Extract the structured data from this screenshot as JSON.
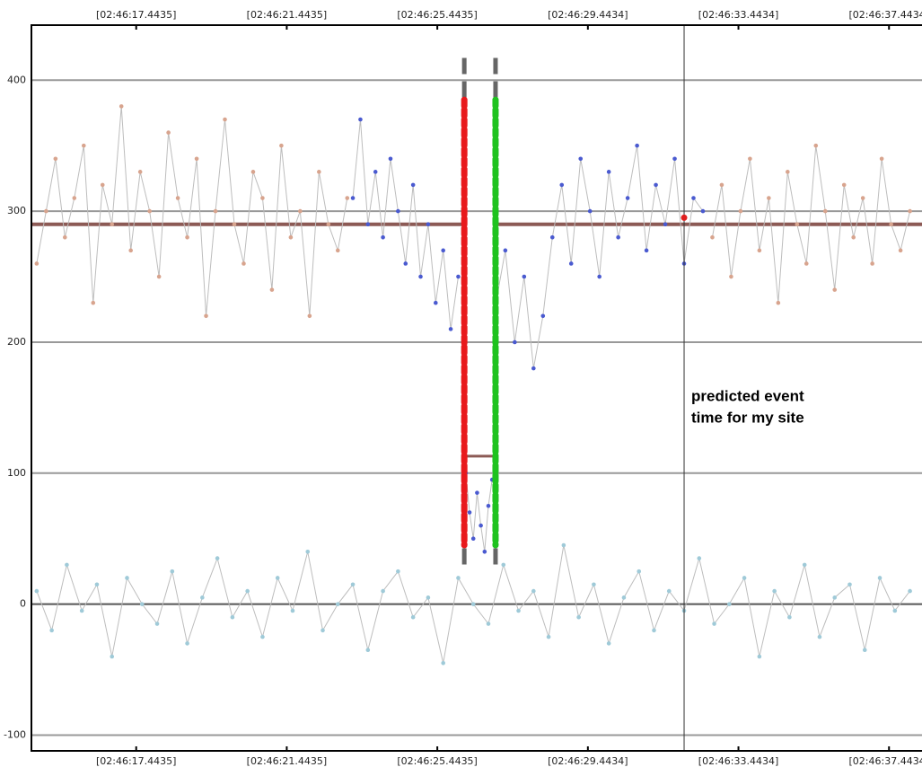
{
  "chart_data": {
    "type": "scatter",
    "xlim": [
      14.66,
      38.32
    ],
    "ylim": [
      -112,
      442
    ],
    "xticks": [
      {
        "value": 17.4435,
        "label": "[02:46:17.4435]"
      },
      {
        "value": 21.4435,
        "label": "[02:46:21.4435]"
      },
      {
        "value": 25.4435,
        "label": "[02:46:25.4435]"
      },
      {
        "value": 29.4434,
        "label": "[02:46:29.4434]"
      },
      {
        "value": 33.4434,
        "label": "[02:46:33.4434]"
      },
      {
        "value": 37.4434,
        "label": "[02:46:37.4434]"
      }
    ],
    "yticks": [
      -100,
      0,
      100,
      200,
      300,
      400
    ],
    "grid": true,
    "series": [
      {
        "color": "#d8a48e",
        "x": [
          14.8,
          15.05,
          15.3,
          15.55,
          15.8,
          16.05,
          16.3,
          16.55,
          16.8,
          17.05,
          17.3,
          17.55,
          17.8,
          18.05,
          18.3,
          18.55,
          18.8,
          19.05,
          19.3,
          19.55,
          19.8,
          20.05,
          20.3,
          20.55,
          20.8,
          21.05,
          21.3,
          21.55,
          21.8,
          22.05,
          22.3,
          22.55,
          22.8,
          23.05
        ],
        "values": [
          260,
          300,
          340,
          280,
          310,
          350,
          230,
          320,
          290,
          380,
          270,
          330,
          300,
          250,
          360,
          310,
          280,
          340,
          220,
          300,
          370,
          290,
          260,
          330,
          310,
          240,
          350,
          280,
          300,
          220,
          330,
          290,
          270,
          310
        ]
      },
      {
        "color": "#4a5ad0",
        "x": [
          23.2,
          23.4,
          23.6,
          23.8,
          24.0,
          24.2,
          24.4,
          24.6,
          24.8,
          25.0,
          25.2,
          25.4,
          25.6,
          25.8,
          26.0
        ],
        "values": [
          310,
          370,
          290,
          330,
          280,
          340,
          300,
          260,
          320,
          250,
          290,
          230,
          270,
          210,
          250
        ]
      },
      {
        "color": "#4a5ad0",
        "x": [
          26.2,
          26.3,
          26.4,
          26.5,
          26.6,
          26.7,
          26.8,
          26.9
        ],
        "values": [
          100,
          70,
          50,
          85,
          60,
          40,
          75,
          95
        ]
      },
      {
        "color": "#4a5ad0",
        "x": [
          27.0,
          27.25,
          27.5,
          27.75,
          28.0,
          28.25,
          28.5,
          28.75,
          29.0,
          29.25,
          29.5,
          29.75,
          30.0,
          30.25,
          30.5,
          30.75,
          31.0,
          31.25,
          31.5,
          31.75,
          32.0,
          32.25,
          32.5
        ],
        "values": [
          230,
          270,
          200,
          250,
          180,
          220,
          280,
          320,
          260,
          340,
          300,
          250,
          330,
          280,
          310,
          350,
          270,
          320,
          290,
          340,
          260,
          310,
          300
        ]
      },
      {
        "color": "#d8a48e",
        "x": [
          32.75,
          33.0,
          33.25,
          33.5,
          33.75,
          34.0,
          34.25,
          34.5,
          34.75,
          35.0,
          35.25,
          35.5,
          35.75,
          36.0,
          36.25,
          36.5,
          36.75,
          37.0,
          37.25,
          37.5,
          37.75,
          38.0
        ],
        "values": [
          280,
          320,
          250,
          300,
          340,
          270,
          310,
          230,
          330,
          290,
          260,
          350,
          300,
          240,
          320,
          280,
          310,
          260,
          340,
          290,
          270,
          300
        ]
      },
      {
        "color": "#9fcad8",
        "x": [
          14.8,
          15.2,
          15.6,
          16.0,
          16.4,
          16.8,
          17.2,
          17.6,
          18.0,
          18.4,
          18.8,
          19.2,
          19.6,
          20.0,
          20.4,
          20.8,
          21.2,
          21.6,
          22.0,
          22.4,
          22.8,
          23.2,
          23.6,
          24.0,
          24.4,
          24.8,
          25.2,
          25.6,
          26.0,
          26.4,
          26.8,
          27.2,
          27.6,
          28.0,
          28.4,
          28.8,
          29.2,
          29.6,
          30.0,
          30.4,
          30.8,
          31.2,
          31.6,
          32.0,
          32.4,
          32.8,
          33.2,
          33.6,
          34.0,
          34.4,
          34.8,
          35.2,
          35.6,
          36.0,
          36.4,
          36.8,
          37.2,
          37.6,
          38.0
        ],
        "values": [
          10,
          -20,
          30,
          -5,
          15,
          -40,
          20,
          0,
          -15,
          25,
          -30,
          5,
          35,
          -10,
          10,
          -25,
          20,
          -5,
          40,
          -20,
          0,
          15,
          -35,
          10,
          25,
          -10,
          5,
          -45,
          20,
          0,
          -15,
          30,
          -5,
          10,
          -25,
          45,
          -10,
          15,
          -30,
          5,
          25,
          -20,
          10,
          -5,
          35,
          -15,
          0,
          20,
          -40,
          10,
          -10,
          30,
          -25,
          5,
          15,
          -35,
          20,
          -5,
          10
        ]
      }
    ],
    "event": {
      "start": 26.16,
      "end": 26.99,
      "baseline": 290,
      "depth": 113,
      "color_start": "#e8191c",
      "color_end": "#1ec21e",
      "line_color": "#8c5a55",
      "marker_top": 417,
      "marker_bottom": 30,
      "colored_top": 385,
      "colored_bottom": 45
    },
    "prediction": {
      "time": 32.0,
      "value": 295,
      "color": "#e02020",
      "label": [
        "predicted event",
        "time for my site"
      ]
    }
  }
}
